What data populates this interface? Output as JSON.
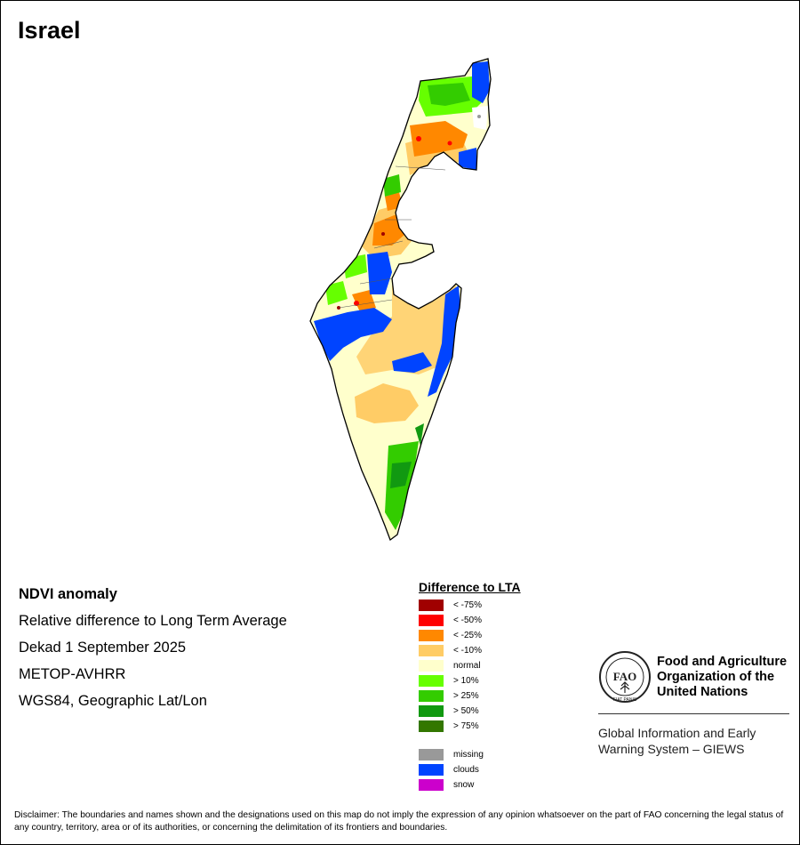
{
  "map": {
    "title": "Israel",
    "info_lines": [
      "NDVI anomaly",
      "Relative difference to Long Term Average",
      "Dekad 1 September 2025",
      "METOP-AVHRR",
      "WGS84, Geographic Lat/Lon"
    ]
  },
  "legend": {
    "title": "Difference to LTA",
    "classes": [
      {
        "label": "< -75%",
        "color": "#a00000"
      },
      {
        "label": "< -50%",
        "color": "#ff0000"
      },
      {
        "label": "< -25%",
        "color": "#ff8800"
      },
      {
        "label": "< -10%",
        "color": "#ffcc66"
      },
      {
        "label": "normal",
        "color": "#ffffcc"
      },
      {
        "label": "> 10%",
        "color": "#66ff00"
      },
      {
        "label": "> 25%",
        "color": "#33cc00"
      },
      {
        "label": "> 50%",
        "color": "#119911"
      },
      {
        "label": "> 75%",
        "color": "#337700"
      }
    ],
    "special": [
      {
        "label": "missing",
        "color": "#999999"
      },
      {
        "label": "clouds",
        "color": "#0044ff"
      },
      {
        "label": "snow",
        "color": "#cc00cc"
      }
    ]
  },
  "fao": {
    "name_lines": [
      "Food and Agriculture",
      "Organization of the",
      "United Nations"
    ],
    "logo_text": "FAO",
    "logo_motto": "FIAT PANIS",
    "giews_lines": [
      "Global Information and Early",
      "Warning System – GIEWS"
    ]
  },
  "disclaimer": "Disclaimer: The boundaries and names shown and the designations used on this map do not imply the expression of any opinion whatsoever on the part of FAO concerning the legal status of any country, territory, area or of its authorities, or concerning the delimitation of its frontiers and boundaries."
}
